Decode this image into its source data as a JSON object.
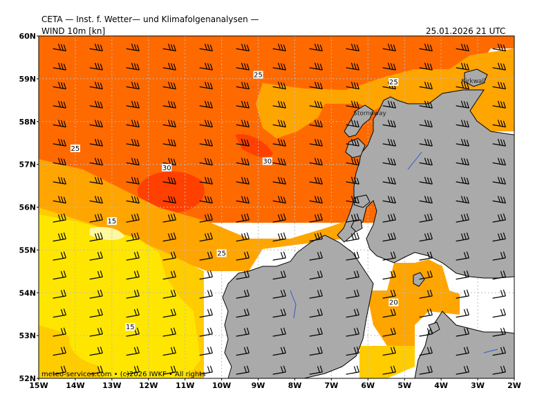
{
  "header": {
    "title": "CETA — Inst. f. Wetter— und Klimafolgenanalysen —",
    "variable": "WIND 10m [kn]",
    "datetime": "25.01.2026 21 UTC"
  },
  "map": {
    "lon_range": [
      -15,
      -2
    ],
    "lat_range": [
      52,
      60
    ],
    "lat_labels": [
      "60N",
      "59N",
      "58N",
      "57N",
      "56N",
      "55N",
      "54N",
      "53N",
      "52N"
    ],
    "lon_labels": [
      "15W",
      "14W",
      "13W",
      "12W",
      "11W",
      "10W",
      "9W",
      "8W",
      "7W",
      "6W",
      "5W",
      "4W",
      "3W",
      "2W"
    ],
    "contour_labels": [
      {
        "text": "25",
        "lon": -9.0,
        "lat": 59.07
      },
      {
        "text": "25",
        "lon": -5.3,
        "lat": 58.9
      },
      {
        "text": "25",
        "lon": -14.0,
        "lat": 57.35
      },
      {
        "text": "30",
        "lon": -11.5,
        "lat": 56.9
      },
      {
        "text": "30",
        "lon": -8.75,
        "lat": 57.05
      },
      {
        "text": "15",
        "lon": -13.0,
        "lat": 55.65
      },
      {
        "text": "25",
        "lon": -10.0,
        "lat": 54.9
      },
      {
        "text": "20",
        "lon": -5.3,
        "lat": 53.75
      },
      {
        "text": "15",
        "lon": -12.5,
        "lat": 53.18
      }
    ],
    "place_labels": [
      {
        "text": "Stornoway",
        "lon": -6.4,
        "lat": 58.15
      },
      {
        "text": "Kirkwall",
        "lon": -3.45,
        "lat": 58.9
      }
    ],
    "colors": {
      "wind_10_15": "#ffe600",
      "wind_15_20": "#ffcc00",
      "wind_20_25": "#ffa500",
      "wind_25_30": "#ff6a00",
      "wind_30_35": "#ff4000",
      "land": "#aaaaaa",
      "grid": "#bbbbbb"
    }
  },
  "credit": "meteo-services.com • (c)2026 IWKF • All rights"
}
